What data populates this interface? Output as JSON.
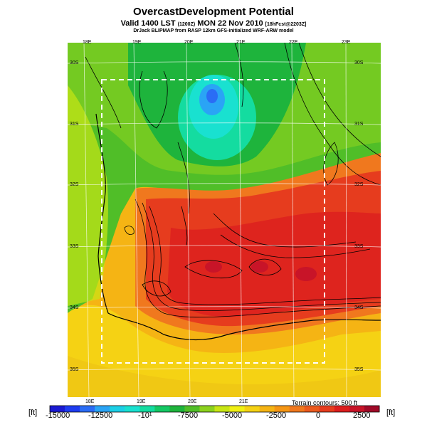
{
  "header": {
    "title": "OvercastDevelopment Potential",
    "valid_line": "Valid 1400 LST",
    "valid_code": "(1200Z)",
    "valid_date": "MON 22 Nov 2010",
    "valid_run": "[18hFcst@2203Z]",
    "source": "DrJack BLIPMAP from RASP 12km GFS-initialized WRF-ARW model"
  },
  "map": {
    "lon_labels_top": [
      "18E",
      "19E",
      "20E",
      "21E",
      "22E",
      "23E"
    ],
    "lon_labels_bottom": [
      "18E",
      "19E",
      "20E",
      "21E"
    ],
    "lat_labels_left": [
      "30S",
      "31S",
      "32S",
      "33S",
      "34S",
      "35S"
    ],
    "lat_labels_right": [
      "30S",
      "31S",
      "32S",
      "33S",
      "34S",
      "35S"
    ],
    "terrain_note": "Terrain contours: 500 ft"
  },
  "colorbar": {
    "unit_left": "[ft]",
    "unit_right": "[ft]",
    "tick_labels": [
      "-15000",
      "-12500",
      "-10¹",
      "-7500",
      "-5000",
      "-2500",
      "0",
      "2500"
    ],
    "colors": [
      "#1a1ad2",
      "#1e3cf0",
      "#2a6cf5",
      "#2aa4f5",
      "#1ccfe6",
      "#19e1d0",
      "#14dca0",
      "#14c864",
      "#1eb43c",
      "#50be28",
      "#8cd21e",
      "#c8e614",
      "#f0f014",
      "#f5d214",
      "#f5b414",
      "#f59614",
      "#f0781e",
      "#eb5a1e",
      "#e63c1e",
      "#dc1e1e",
      "#c81428",
      "#a00a28"
    ]
  }
}
